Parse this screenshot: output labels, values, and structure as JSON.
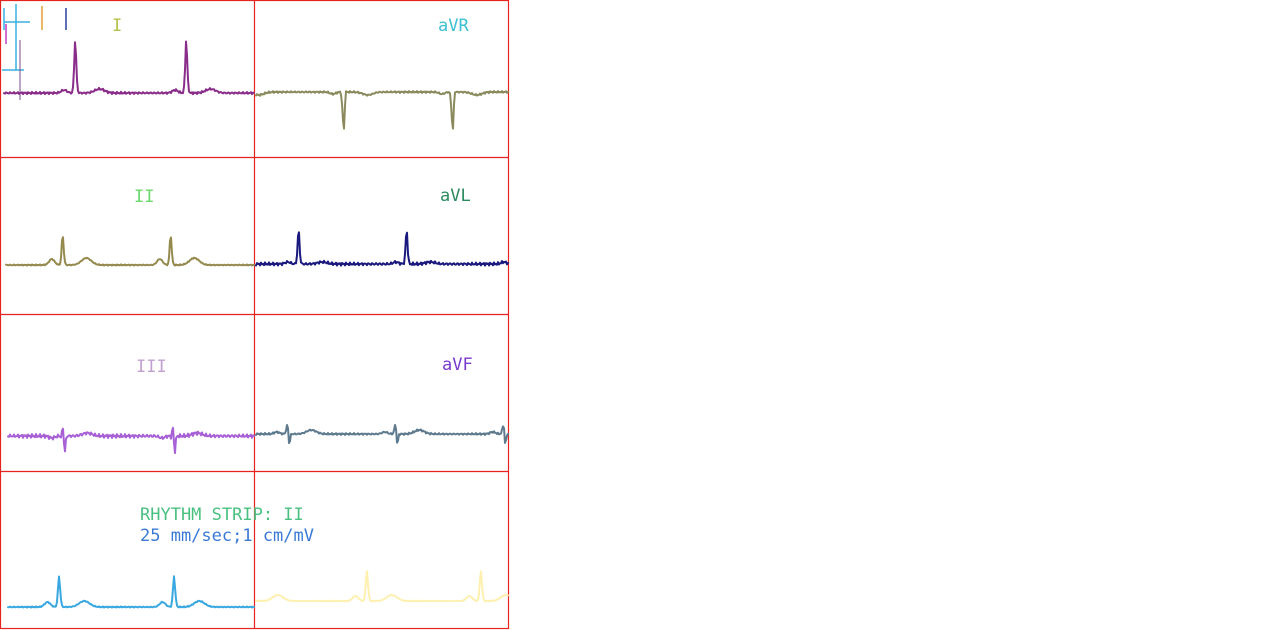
{
  "leads": [
    {
      "name": "I",
      "label": "I",
      "color": "#8a2d8a",
      "label_colors": [
        "#5b4a8a",
        "#b5c04a"
      ]
    },
    {
      "name": "aVR",
      "label": "aVR",
      "color": "#8a8a5e",
      "label_colors": [
        "#e0c04a",
        "#3ac0d0"
      ]
    },
    {
      "name": "II",
      "label": "II",
      "color": "#958a4e",
      "label_colors": [
        "#6a3a20",
        "#6ad86a"
      ]
    },
    {
      "name": "aVL",
      "label": "aVL",
      "color": "#1a1a7e",
      "label_colors": [
        "#c07a2a",
        "#2a8a5e"
      ]
    },
    {
      "name": "III",
      "label": "III",
      "color": "#a860d6",
      "label_colors": [
        "#e060b0",
        "#c0a0d0",
        "#a0a0c0"
      ]
    },
    {
      "name": "aVF",
      "label": "aVF",
      "color": "#5e7a8e",
      "label_colors": [
        "#c07a2a",
        "#7a3ad0"
      ]
    },
    {
      "name": "II-rhythm",
      "color": "#3aa8e0",
      "color2": "#fdf0b0"
    }
  ],
  "rhythm": {
    "line1": "RHYTHM STRIP: II",
    "line2": "25 mm/sec;1 cm/mV",
    "color1": [
      "#4ac080",
      "#5a8ad6",
      "#c05ac0"
    ],
    "color2": [
      "#3a7ad6",
      "#3ab0c0",
      "#a07ad6"
    ]
  },
  "colors": {
    "grid": "#e8231f",
    "background": "#ffffff"
  }
}
